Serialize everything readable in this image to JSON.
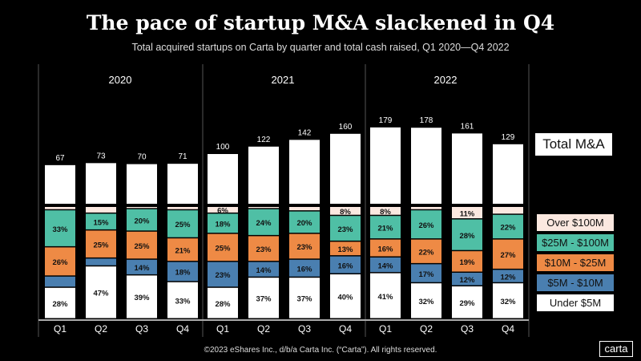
{
  "title": "The pace of startup M&A slackened in Q4",
  "subtitle": "Total acquired startups on Carta by quarter and total cash raised, Q1 2020—Q4 2022",
  "footer": "©2023 eShares Inc., d/b/a Carta Inc. (“Carta”). All rights reserved.",
  "logo": "carta",
  "chart_data": {
    "type": "bar",
    "years": [
      "2020",
      "2021",
      "2022"
    ],
    "categories": [
      "Q1",
      "Q2",
      "Q3",
      "Q4",
      "Q1",
      "Q2",
      "Q3",
      "Q4",
      "Q1",
      "Q2",
      "Q3",
      "Q4"
    ],
    "totals": [
      67,
      73,
      70,
      71,
      100,
      122,
      142,
      160,
      179,
      178,
      161,
      129
    ],
    "total_series_name": "Total M&A",
    "series": [
      {
        "name": "Under $5M",
        "color": "#ffffff",
        "text_color": "#111111",
        "values": [
          28,
          47,
          39,
          33,
          28,
          37,
          37,
          40,
          41,
          32,
          29,
          32
        ],
        "labels": [
          "28%",
          "47%",
          "39%",
          "33%",
          "28%",
          "37%",
          "37%",
          "40%",
          "41%",
          "32%",
          "29%",
          "32%"
        ]
      },
      {
        "name": "$5M - $10M",
        "color": "#4a7fb0",
        "text_color": "#111111",
        "values": [
          10,
          7,
          14,
          18,
          23,
          14,
          16,
          16,
          14,
          17,
          12,
          12
        ],
        "labels": [
          "",
          "",
          "14%",
          "18%",
          "23%",
          "14%",
          "16%",
          "16%",
          "14%",
          "17%",
          "12%",
          "12%"
        ]
      },
      {
        "name": "$10M - $25M",
        "color": "#ee8a45",
        "text_color": "#111111",
        "values": [
          26,
          25,
          25,
          21,
          25,
          23,
          23,
          13,
          16,
          22,
          19,
          27
        ],
        "labels": [
          "26%",
          "25%",
          "25%",
          "21%",
          "25%",
          "23%",
          "23%",
          "13%",
          "16%",
          "22%",
          "19%",
          "27%"
        ]
      },
      {
        "name": "$25M - $100M",
        "color": "#4fbfa5",
        "text_color": "#111111",
        "values": [
          33,
          15,
          20,
          25,
          18,
          24,
          20,
          23,
          21,
          26,
          28,
          22
        ],
        "labels": [
          "33%",
          "15%",
          "20%",
          "25%",
          "18%",
          "24%",
          "20%",
          "23%",
          "21%",
          "26%",
          "28%",
          "22%"
        ]
      },
      {
        "name": "Over $100M",
        "color": "#fbe8e0",
        "text_color": "#111111",
        "values": [
          3,
          6,
          2,
          3,
          6,
          2,
          4,
          8,
          8,
          3,
          11,
          7
        ],
        "labels": [
          "",
          "",
          "",
          "",
          "6%",
          "",
          "",
          "8%",
          "8%",
          "",
          "11%",
          ""
        ]
      }
    ]
  }
}
